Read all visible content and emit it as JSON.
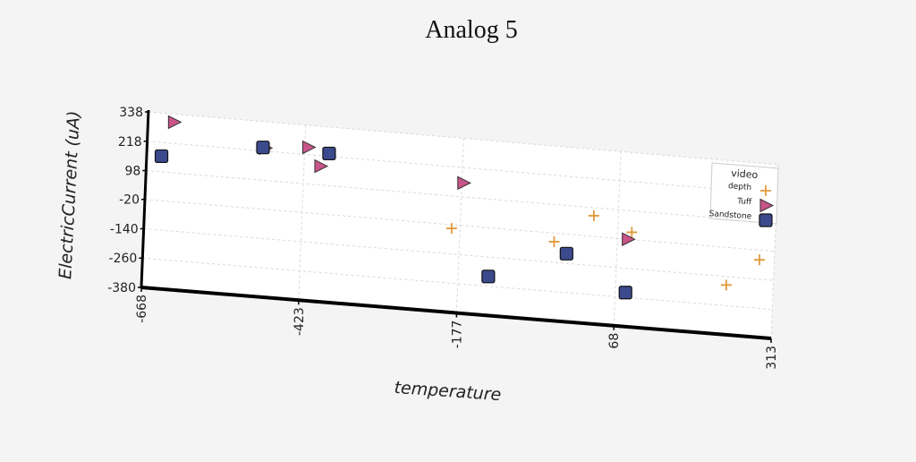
{
  "chart_data": {
    "type": "scatter",
    "title": "Analog 5",
    "xlabel": "temperature",
    "ylabel": "ElectricCurrent (uA)",
    "xlim": [
      -668,
      313
    ],
    "ylim": [
      -380,
      338
    ],
    "xticks": [
      "-668",
      "-423",
      "-177",
      "68",
      "313"
    ],
    "yticks": [
      "338",
      "218",
      "98",
      "-20",
      "-140",
      "-260",
      "-380"
    ],
    "grid": true,
    "legend": {
      "title": "video",
      "position": "top-right",
      "entries": [
        "depth",
        "Tuff",
        "Sandstone"
      ]
    },
    "series": [
      {
        "name": "depth",
        "marker": "plus",
        "color": "#e09a3c",
        "points": [
          [
            -190,
            -35
          ],
          [
            -30,
            -55
          ],
          [
            30,
            65
          ],
          [
            90,
            10
          ],
          [
            240,
            -175
          ],
          [
            290,
            -60
          ]
        ]
      },
      {
        "name": "Tuff",
        "marker": "triangle-right",
        "color": "#c8548a",
        "points": [
          [
            -628,
            305
          ],
          [
            -485,
            230
          ],
          [
            -418,
            248
          ],
          [
            -398,
            175
          ],
          [
            -175,
            155
          ],
          [
            84,
            -20
          ]
        ]
      },
      {
        "name": "Sandstone",
        "marker": "square",
        "color": "#3b4a8c",
        "points": [
          [
            -645,
            162
          ],
          [
            -488,
            232
          ],
          [
            -385,
            230
          ],
          [
            -130,
            -220
          ],
          [
            -10,
            -100
          ],
          [
            84,
            -240
          ]
        ]
      }
    ]
  }
}
